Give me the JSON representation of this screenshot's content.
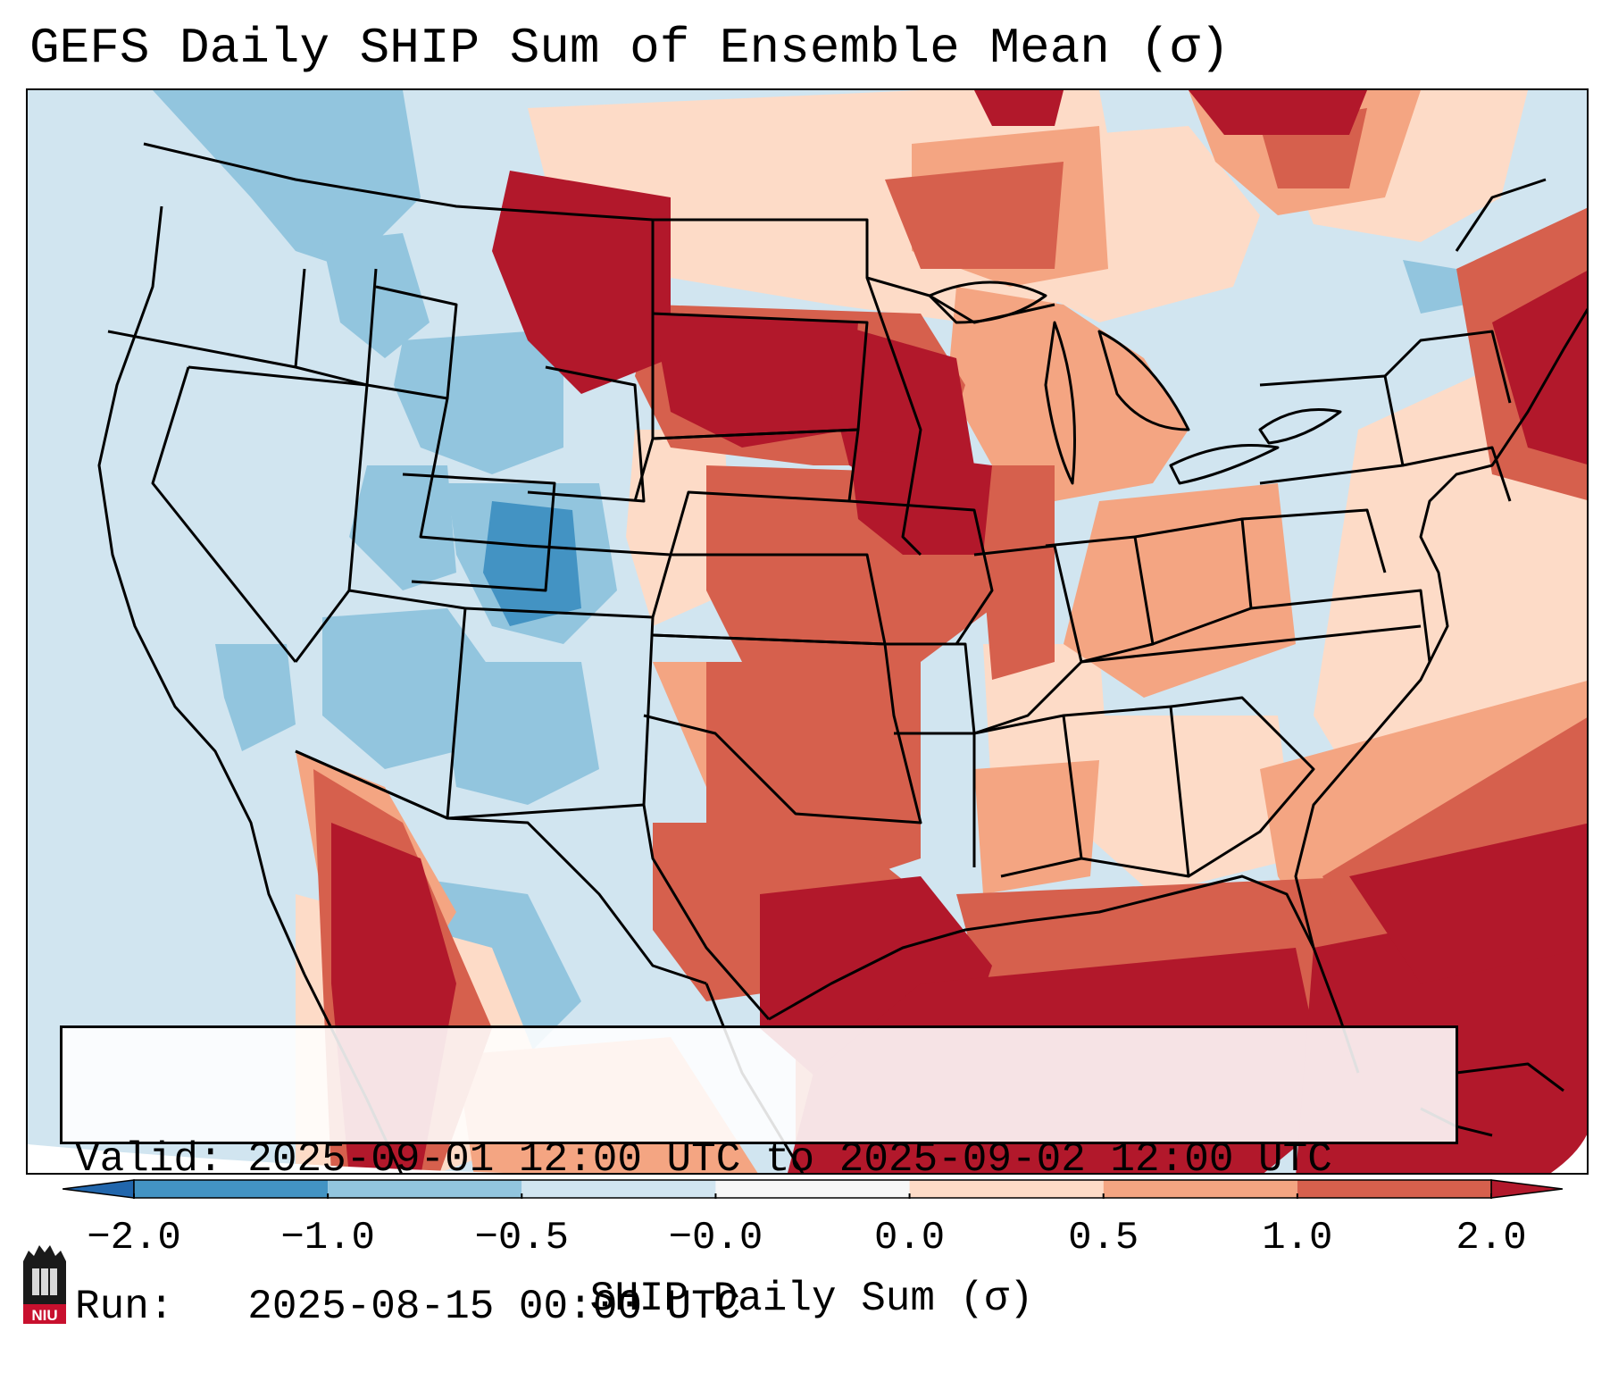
{
  "title": "GEFS Daily SHIP Sum of Ensemble Mean (σ)",
  "info": {
    "valid_label": "Valid:",
    "valid_value": "2025-09-01 12:00 UTC to 2025-09-02 12:00 UTC",
    "run_label": "Run:",
    "run_value": "2025-08-15 00:00 UTC"
  },
  "colorbar": {
    "label": "SHIP Daily Sum (σ)",
    "ticks": [
      "−2.0",
      "−1.0",
      "−0.5",
      "−0.0",
      "0.0",
      "0.5",
      "1.0",
      "2.0"
    ],
    "levels": [
      -2.0,
      -1.0,
      -0.5,
      -0.0,
      0.0,
      0.5,
      1.0,
      2.0
    ],
    "colors": [
      "#2166ac",
      "#4393c3",
      "#92c5de",
      "#d1e5f0",
      "#f7f7f7",
      "#fddbc7",
      "#f4a582",
      "#d6604d",
      "#b2182b"
    ],
    "extend": "both"
  },
  "map": {
    "region": "Contiguous United States",
    "anomaly_pattern": {
      "strong_positive": [
        "Northern Plains",
        "Upper Midwest",
        "Texas",
        "Gulf of Mexico",
        "Western Atlantic",
        "New England coast"
      ],
      "moderate_positive": [
        "Central Plains",
        "Ohio Valley",
        "Southeast"
      ],
      "negative": [
        "Intermountain West",
        "Colorado",
        "Pacific Northwest",
        "Southwest"
      ]
    }
  },
  "logo": {
    "text": "NIU"
  }
}
